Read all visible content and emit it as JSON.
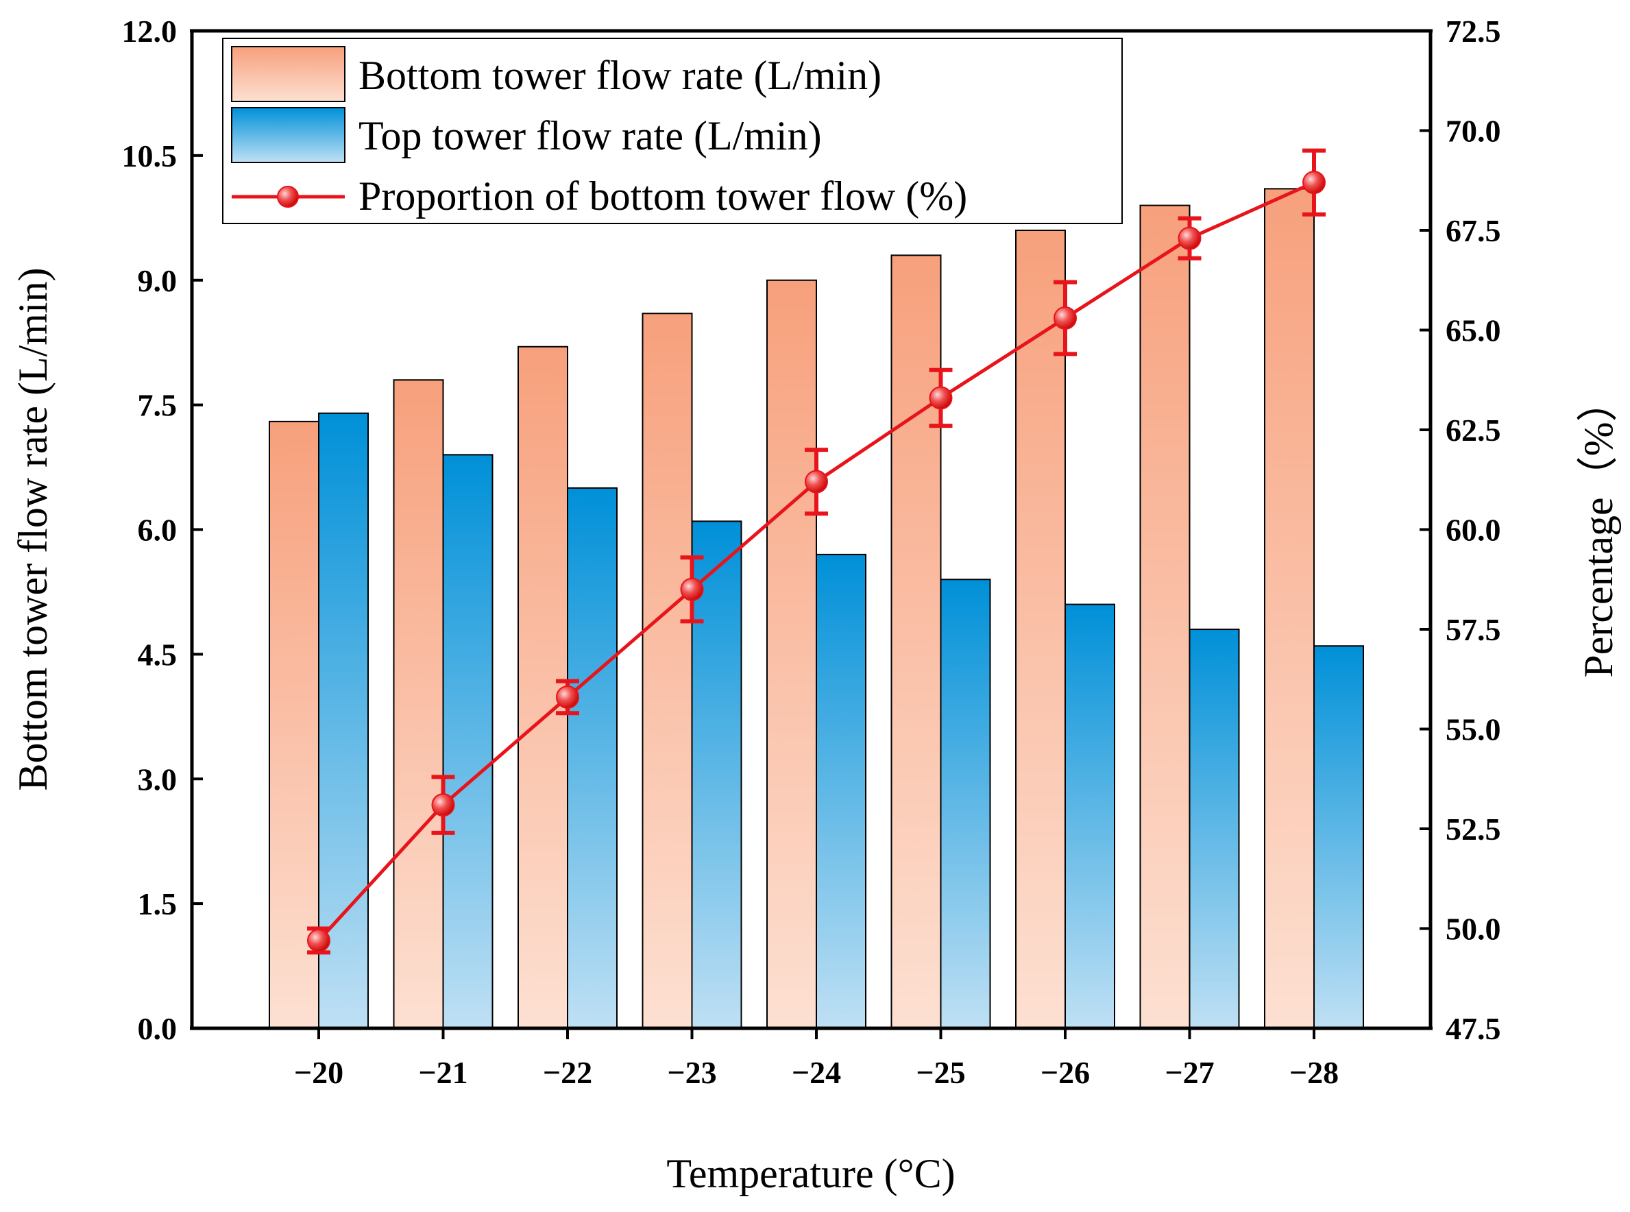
{
  "chart_data": {
    "type": "bar",
    "title": "",
    "xlabel": "Temperature (°C)",
    "ylabel": "Bottom tower flow rate (L/min)",
    "y2label": "Percentage（%）",
    "categories": [
      "−20",
      "−21",
      "−22",
      "−23",
      "−24",
      "−25",
      "−26",
      "−27",
      "−28"
    ],
    "ylim": [
      0,
      12
    ],
    "yticks": [
      "0.0",
      "1.5",
      "3.0",
      "4.5",
      "6.0",
      "7.5",
      "9.0",
      "10.5",
      "12.0"
    ],
    "y2lim": [
      47.5,
      72.5
    ],
    "y2ticks": [
      "47.5",
      "50.0",
      "52.5",
      "55.0",
      "57.5",
      "60.0",
      "62.5",
      "65.0",
      "67.5",
      "70.0",
      "72.5"
    ],
    "series": [
      {
        "name": "Bottom tower flow rate (L/min)",
        "type": "bar",
        "axis": "left",
        "color": "#f7a07c",
        "values": [
          7.3,
          7.8,
          8.2,
          8.6,
          9.0,
          9.3,
          9.6,
          9.9,
          10.1
        ]
      },
      {
        "name": "Top tower flow rate (L/min)",
        "type": "bar",
        "axis": "left",
        "color": "#0090d8",
        "values": [
          7.4,
          6.9,
          6.5,
          6.1,
          5.7,
          5.4,
          5.1,
          4.8,
          4.6
        ]
      },
      {
        "name": "Proportion of bottom tower flow (%)",
        "type": "line",
        "axis": "right",
        "color": "#e8141b",
        "values": [
          49.7,
          53.1,
          55.8,
          58.5,
          61.2,
          63.3,
          65.3,
          67.3,
          68.7
        ],
        "errors": [
          0.3,
          0.7,
          0.4,
          0.8,
          0.8,
          0.7,
          0.9,
          0.5,
          0.8
        ]
      }
    ],
    "legend_position": "top-left"
  }
}
